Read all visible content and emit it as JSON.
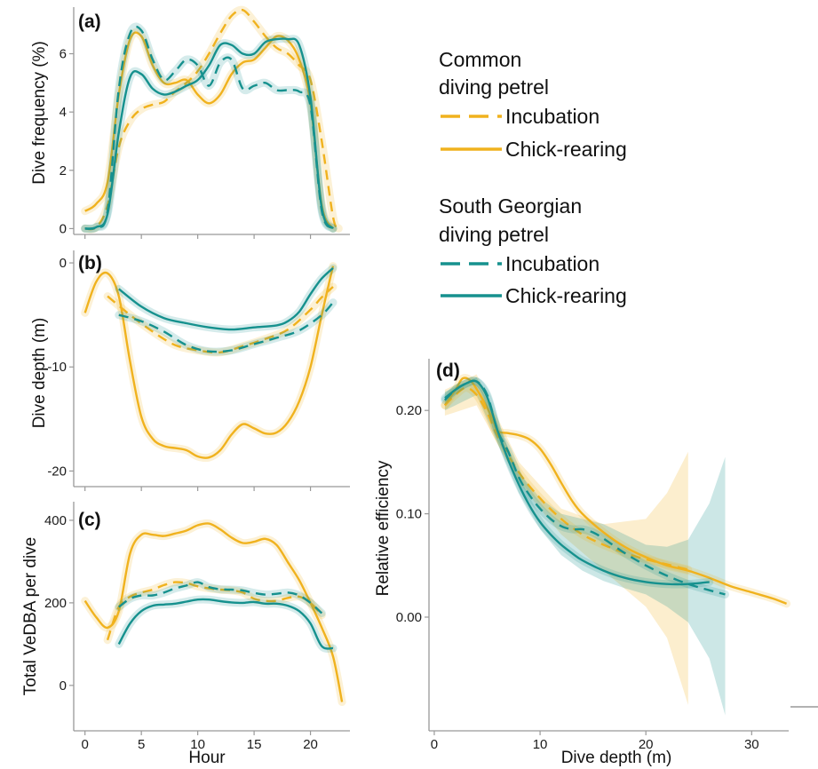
{
  "colors": {
    "common": "#f0b21e",
    "south_georgian": "#16918e",
    "axis": "#999999"
  },
  "legend": {
    "groups": [
      {
        "title_line1": "Common",
        "title_line2": "diving petrel",
        "color": "#f0b21e",
        "items": [
          {
            "label": "Incubation",
            "dash": true
          },
          {
            "label": "Chick-rearing",
            "dash": false
          }
        ]
      },
      {
        "title_line1": "South Georgian",
        "title_line2": "diving petrel",
        "color": "#16918e",
        "items": [
          {
            "label": "Incubation",
            "dash": true
          },
          {
            "label": "Chick-rearing",
            "dash": false
          }
        ]
      }
    ]
  },
  "chart_data": [
    {
      "panel": "(a)",
      "type": "line",
      "title": "",
      "xlabel": "",
      "ylabel": "Dive frequency (%)",
      "xlim": [
        -1,
        23.5
      ],
      "ylim": [
        -0.2,
        7.6
      ],
      "xticks": [
        0,
        5,
        10,
        15,
        20
      ],
      "yticks": [
        0,
        2,
        4,
        6
      ],
      "xticklabels": [],
      "yticklabels": [
        "0",
        "2",
        "4",
        "6"
      ],
      "series": [
        {
          "species": "Common diving petrel",
          "stage": "Incubation",
          "color": "#f0b21e",
          "dashed": true,
          "x": [
            0,
            1,
            2,
            3,
            4,
            5,
            6,
            7,
            8,
            9,
            10,
            11,
            12,
            13,
            14,
            15,
            16,
            17,
            18,
            19,
            20,
            21,
            22,
            22.5
          ],
          "y": [
            0.0,
            0.05,
            0.8,
            2.8,
            3.7,
            4.1,
            4.25,
            4.35,
            4.7,
            5.0,
            5.4,
            6.0,
            6.7,
            7.3,
            7.5,
            7.1,
            6.6,
            6.2,
            6.0,
            5.6,
            5.1,
            3.0,
            0.4,
            0.0
          ]
        },
        {
          "species": "Common diving petrel",
          "stage": "Chick-rearing",
          "color": "#f0b21e",
          "dashed": false,
          "x": [
            0,
            1,
            2,
            3,
            4,
            5,
            6,
            7,
            8,
            9,
            10,
            11,
            12,
            13,
            14,
            15,
            16,
            17,
            18,
            19,
            20,
            21,
            22
          ],
          "y": [
            0.6,
            0.85,
            1.6,
            4.6,
            6.5,
            6.6,
            5.6,
            5.0,
            5.0,
            5.1,
            4.6,
            4.3,
            4.6,
            5.3,
            5.7,
            5.8,
            6.2,
            6.6,
            6.45,
            5.8,
            4.3,
            0.8,
            0.0
          ]
        },
        {
          "species": "South Georgian diving petrel",
          "stage": "Incubation",
          "color": "#16918e",
          "dashed": true,
          "x": [
            0,
            1,
            2,
            3,
            4,
            5,
            6,
            7,
            8,
            9,
            10,
            11,
            12,
            13,
            14,
            15,
            16,
            17,
            18,
            19,
            20,
            21,
            22
          ],
          "y": [
            0.0,
            0.05,
            0.6,
            4.8,
            6.7,
            6.8,
            5.8,
            5.1,
            5.4,
            5.8,
            5.6,
            4.9,
            5.7,
            5.8,
            4.8,
            4.9,
            5.0,
            4.75,
            4.75,
            4.7,
            4.2,
            0.6,
            0.0
          ]
        },
        {
          "species": "South Georgian diving petrel",
          "stage": "Chick-rearing",
          "color": "#16918e",
          "dashed": false,
          "x": [
            0,
            1,
            2,
            3,
            4,
            5,
            6,
            7,
            8,
            9,
            10,
            11,
            12,
            13,
            14,
            15,
            16,
            17,
            18,
            19,
            20,
            21,
            22
          ],
          "y": [
            0.0,
            0.05,
            0.5,
            3.3,
            5.2,
            5.3,
            4.8,
            4.6,
            4.7,
            4.9,
            5.1,
            5.6,
            6.3,
            6.3,
            6.0,
            6.0,
            6.4,
            6.5,
            6.5,
            6.3,
            4.5,
            0.7,
            0.0
          ]
        }
      ]
    },
    {
      "panel": "(b)",
      "type": "line",
      "title": "",
      "xlabel": "",
      "ylabel": "Dive depth (m)",
      "xlim": [
        -1,
        23.5
      ],
      "ylim": [
        -21.5,
        1.2
      ],
      "xticks": [
        0,
        5,
        10,
        15,
        20
      ],
      "yticks": [
        0,
        -10,
        -20
      ],
      "xticklabels": [],
      "yticklabels": [
        "0",
        "-10",
        "-20"
      ],
      "series": [
        {
          "species": "Common diving petrel",
          "stage": "Incubation",
          "color": "#f0b21e",
          "dashed": true,
          "x": [
            2,
            4,
            6,
            8,
            10,
            12,
            14,
            16,
            18,
            20,
            21,
            22
          ],
          "y": [
            -3.2,
            -5.0,
            -6.6,
            -7.9,
            -8.4,
            -8.6,
            -8.0,
            -7.3,
            -6.4,
            -4.5,
            -3.3,
            -2.3
          ]
        },
        {
          "species": "Common diving petrel",
          "stage": "Chick-rearing",
          "color": "#f0b21e",
          "dashed": false,
          "x": [
            0,
            1,
            2,
            3,
            4,
            5,
            6,
            7,
            8,
            9,
            10,
            11,
            12,
            13,
            14,
            15,
            16,
            17,
            18,
            19,
            20,
            21,
            22
          ],
          "y": [
            -4.8,
            -1.8,
            -1.0,
            -3.2,
            -9.5,
            -14.8,
            -16.9,
            -17.6,
            -17.8,
            -18.0,
            -18.6,
            -18.7,
            -18.0,
            -16.5,
            -15.5,
            -15.9,
            -16.4,
            -16.3,
            -15.3,
            -13.3,
            -10.0,
            -5.0,
            -0.3
          ]
        },
        {
          "species": "South Georgian diving petrel",
          "stage": "Incubation",
          "color": "#16918e",
          "dashed": true,
          "x": [
            3,
            5,
            7,
            9,
            11,
            13,
            15,
            17,
            19,
            21,
            22
          ],
          "y": [
            -5.0,
            -5.6,
            -6.6,
            -7.9,
            -8.5,
            -8.4,
            -7.8,
            -7.2,
            -6.5,
            -5.0,
            -3.8
          ]
        },
        {
          "species": "South Georgian diving petrel",
          "stage": "Chick-rearing",
          "color": "#16918e",
          "dashed": false,
          "x": [
            3,
            5,
            7,
            9,
            11,
            13,
            15,
            17,
            18,
            19,
            20,
            21,
            22
          ],
          "y": [
            -2.5,
            -4.2,
            -5.3,
            -5.8,
            -6.2,
            -6.4,
            -6.2,
            -6.0,
            -5.6,
            -4.7,
            -3.0,
            -1.5,
            -0.5
          ]
        }
      ]
    },
    {
      "panel": "(c)",
      "type": "line",
      "title": "",
      "xlabel": "Hour",
      "ylabel": "Total VeDBA per dive",
      "xlim": [
        -1,
        23.5
      ],
      "ylim": [
        -110,
        445
      ],
      "xticks": [
        0,
        5,
        10,
        15,
        20
      ],
      "yticks": [
        0,
        200,
        400
      ],
      "xticklabels": [
        "0",
        "5",
        "10",
        "15",
        "20"
      ],
      "yticklabels": [
        "0",
        "200",
        "400"
      ],
      "series": [
        {
          "species": "Common diving petrel",
          "stage": "Incubation",
          "color": "#f0b21e",
          "dashed": true,
          "x": [
            2,
            3,
            4,
            5,
            6,
            7,
            8,
            9,
            10,
            11,
            12,
            13,
            14,
            15,
            16,
            17,
            18,
            19,
            20,
            21
          ],
          "y": [
            110,
            190,
            215,
            225,
            232,
            243,
            250,
            248,
            240,
            235,
            232,
            230,
            225,
            210,
            205,
            205,
            212,
            215,
            200,
            170
          ]
        },
        {
          "species": "Common diving petrel",
          "stage": "Chick-rearing",
          "color": "#f0b21e",
          "dashed": false,
          "x": [
            0,
            1,
            2,
            3,
            4,
            5,
            6,
            7,
            8,
            9,
            10,
            11,
            12,
            13,
            14,
            15,
            16,
            17,
            18,
            19,
            20,
            21,
            22,
            22.8
          ],
          "y": [
            205,
            165,
            140,
            180,
            320,
            365,
            365,
            362,
            368,
            375,
            388,
            392,
            378,
            358,
            345,
            348,
            355,
            340,
            298,
            255,
            200,
            140,
            70,
            -40
          ]
        },
        {
          "species": "South Georgian diving petrel",
          "stage": "Incubation",
          "color": "#16918e",
          "dashed": true,
          "x": [
            3,
            4,
            5,
            6,
            7,
            8,
            9,
            10,
            11,
            12,
            13,
            14,
            15,
            16,
            17,
            18,
            19,
            20,
            21
          ],
          "y": [
            190,
            210,
            218,
            218,
            225,
            235,
            242,
            250,
            238,
            233,
            232,
            230,
            224,
            220,
            222,
            225,
            218,
            200,
            175
          ]
        },
        {
          "species": "South Georgian diving petrel",
          "stage": "Chick-rearing",
          "color": "#16918e",
          "dashed": false,
          "x": [
            3,
            4,
            5,
            6,
            7,
            8,
            9,
            10,
            11,
            12,
            13,
            14,
            15,
            16,
            17,
            18,
            19,
            20,
            21,
            22
          ],
          "y": [
            100,
            150,
            180,
            193,
            196,
            198,
            203,
            208,
            208,
            204,
            201,
            200,
            202,
            198,
            198,
            193,
            180,
            150,
            95,
            90
          ]
        }
      ]
    },
    {
      "panel": "(d)",
      "type": "line",
      "title": "",
      "xlabel": "Dive depth (m)",
      "ylabel": "Relative efficiency",
      "xlim": [
        -0.5,
        33.5
      ],
      "ylim": [
        -0.11,
        0.25
      ],
      "xticks": [
        0,
        10,
        20,
        30
      ],
      "yticks": [
        0.0,
        0.1,
        0.2
      ],
      "xticklabels": [
        "0",
        "10",
        "20",
        "30"
      ],
      "yticklabels": [
        "0.00",
        "0.10",
        "0.20"
      ],
      "series": [
        {
          "species": "Common diving petrel",
          "stage": "Incubation",
          "color": "#f0b21e",
          "dashed": true,
          "x": [
            1,
            2,
            3,
            4,
            5,
            6,
            8,
            10,
            12,
            14,
            16,
            18,
            20,
            22,
            24
          ],
          "y": [
            0.205,
            0.215,
            0.222,
            0.215,
            0.198,
            0.175,
            0.14,
            0.115,
            0.095,
            0.08,
            0.07,
            0.062,
            0.056,
            0.051,
            0.046
          ]
        },
        {
          "species": "Common diving petrel",
          "stage": "Chick-rearing",
          "color": "#f0b21e",
          "dashed": false,
          "x": [
            1,
            2,
            2.7,
            3.5,
            4.5,
            5.5,
            6,
            7,
            8,
            9,
            10,
            11,
            12,
            13,
            14,
            16,
            18,
            20,
            22,
            24,
            26,
            28,
            30,
            32,
            33.3
          ],
          "y": [
            0.205,
            0.22,
            0.231,
            0.228,
            0.212,
            0.192,
            0.18,
            0.178,
            0.176,
            0.172,
            0.163,
            0.148,
            0.13,
            0.113,
            0.1,
            0.082,
            0.068,
            0.058,
            0.05,
            0.045,
            0.038,
            0.03,
            0.024,
            0.018,
            0.013
          ]
        },
        {
          "species": "South Georgian diving petrel",
          "stage": "Incubation",
          "color": "#16918e",
          "dashed": true,
          "x": [
            1,
            2,
            3,
            4,
            5,
            6,
            7,
            8,
            9,
            10,
            11,
            12,
            13,
            14,
            15,
            16,
            18,
            20,
            22,
            24,
            26,
            27.5
          ],
          "y": [
            0.21,
            0.22,
            0.226,
            0.228,
            0.215,
            0.18,
            0.16,
            0.135,
            0.118,
            0.105,
            0.095,
            0.088,
            0.085,
            0.085,
            0.082,
            0.076,
            0.062,
            0.05,
            0.04,
            0.032,
            0.026,
            0.022
          ]
        },
        {
          "species": "South Georgian diving petrel",
          "stage": "Chick-rearing",
          "color": "#16918e",
          "dashed": false,
          "x": [
            1,
            2,
            3,
            4,
            5,
            6,
            7,
            8,
            9,
            10,
            11,
            12,
            13,
            14,
            16,
            18,
            20,
            22,
            24,
            26
          ],
          "y": [
            0.212,
            0.22,
            0.226,
            0.228,
            0.213,
            0.18,
            0.152,
            0.128,
            0.108,
            0.092,
            0.08,
            0.07,
            0.062,
            0.055,
            0.045,
            0.038,
            0.034,
            0.032,
            0.032,
            0.034
          ]
        }
      ],
      "bands": [
        {
          "species": "Common diving petrel",
          "color": "#f0b21e",
          "x": [
            1,
            4,
            8,
            12,
            16,
            20,
            22,
            24
          ],
          "lo": [
            0.195,
            0.205,
            0.13,
            0.08,
            0.045,
            0.01,
            -0.02,
            -0.085
          ],
          "hi": [
            0.22,
            0.235,
            0.15,
            0.105,
            0.09,
            0.095,
            0.12,
            0.16
          ]
        },
        {
          "species": "South Georgian diving petrel",
          "color": "#16918e",
          "x": [
            1,
            4,
            8,
            10,
            12,
            14,
            16,
            18,
            20,
            22,
            24,
            26,
            27.5
          ],
          "lo": [
            0.2,
            0.215,
            0.12,
            0.085,
            0.06,
            0.045,
            0.035,
            0.028,
            0.022,
            0.01,
            -0.005,
            -0.04,
            -0.095
          ],
          "hi": [
            0.218,
            0.232,
            0.14,
            0.115,
            0.1,
            0.095,
            0.09,
            0.08,
            0.07,
            0.068,
            0.075,
            0.11,
            0.155
          ]
        }
      ]
    }
  ]
}
